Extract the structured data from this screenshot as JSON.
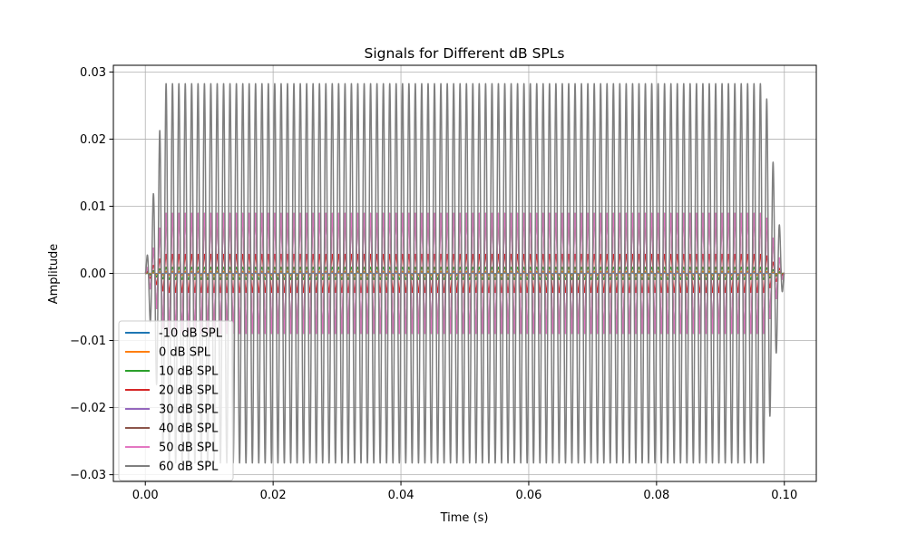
{
  "chart_data": {
    "type": "line",
    "title": "Signals for Different dB SPLs",
    "xlabel": "Time (s)",
    "ylabel": "Amplitude",
    "xlim": [
      -0.005,
      0.105
    ],
    "ylim": [
      -0.031,
      0.031
    ],
    "x_ticks": [
      0.0,
      0.02,
      0.04,
      0.06,
      0.08,
      0.1
    ],
    "x_tick_labels": [
      "0.00",
      "0.02",
      "0.04",
      "0.06",
      "0.08",
      "0.10"
    ],
    "y_ticks": [
      -0.03,
      -0.02,
      -0.01,
      0.0,
      0.01,
      0.02,
      0.03
    ],
    "y_tick_labels": [
      "−0.03",
      "−0.02",
      "−0.01",
      "0.00",
      "0.01",
      "0.02",
      "0.03"
    ],
    "grid": true,
    "legend_position": "bottom-left",
    "signal": {
      "duration": 0.1,
      "frequency": 1000,
      "ramp_duration": 0.003
    },
    "series": [
      {
        "name": "-10 dB SPL",
        "color": "#1f77b4",
        "peak_amplitude": 8.94e-05
      },
      {
        "name": "0 dB SPL",
        "color": "#ff7f0e",
        "peak_amplitude": 0.000283
      },
      {
        "name": "10 dB SPL",
        "color": "#2ca02c",
        "peak_amplitude": 0.000894
      },
      {
        "name": "20 dB SPL",
        "color": "#d62728",
        "peak_amplitude": 0.00283
      },
      {
        "name": "30 dB SPL",
        "color": "#9467bd",
        "peak_amplitude": 0.00894
      },
      {
        "name": "40 dB SPL",
        "color": "#8c564b",
        "peak_amplitude": 0.00894
      },
      {
        "name": "50 dB SPL",
        "color": "#e377c2",
        "peak_amplitude": 0.00894
      },
      {
        "name": "60 dB SPL",
        "color": "#7f7f7f",
        "peak_amplitude": 0.0283
      }
    ]
  }
}
